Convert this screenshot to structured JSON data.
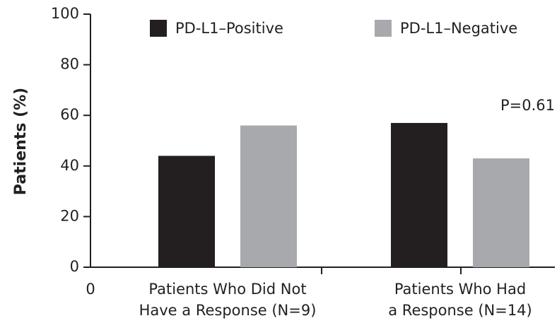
{
  "chart_data": {
    "type": "bar",
    "y_label": "Patients (%)",
    "x_origin_label": "0",
    "annotation": "P=0.61",
    "categories": [
      "Patients Who Did Not\nHave a Response (N=9)",
      "Patients Who Had\na Response (N=14)"
    ],
    "series": [
      {
        "name": "PD-L1–Positive",
        "color": "#231f20",
        "values": [
          44,
          57
        ]
      },
      {
        "name": "PD-L1–Negative",
        "color": "#a7a9ac",
        "values": [
          56,
          43
        ]
      }
    ],
    "ylim": [
      0,
      100
    ],
    "yticks": [
      0,
      20,
      40,
      60,
      80,
      100
    ],
    "grid": false
  }
}
